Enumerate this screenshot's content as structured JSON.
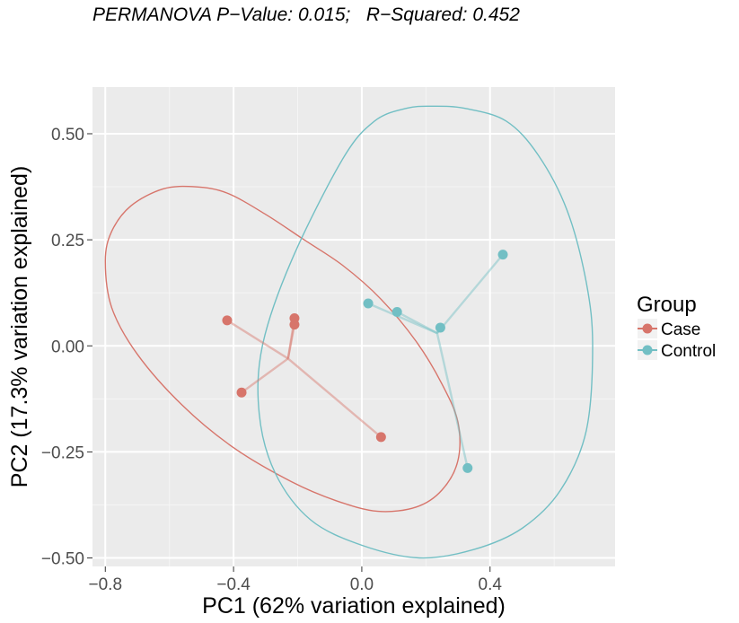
{
  "chart_data": {
    "type": "scatter",
    "title": "PERMANOVA P−Value: 0.015;   R−Squared: 0.452",
    "xlabel": "PC1 (62% variation explained)",
    "ylabel": "PC2 (17.3% variation explained)",
    "xlim": [
      -0.84,
      0.79
    ],
    "ylim": [
      -0.52,
      0.61
    ],
    "x_ticks": [
      -0.8,
      -0.4,
      0.0,
      0.4
    ],
    "x_tick_labels": [
      "−0.8",
      "−0.4",
      "0.0",
      "0.4"
    ],
    "y_ticks": [
      0.5,
      0.25,
      0.0,
      -0.25,
      -0.5
    ],
    "y_tick_labels": [
      "0.50",
      "0.25",
      "0.00",
      "−0.25",
      "−0.50"
    ],
    "grid": true,
    "legend": {
      "title": "Group",
      "position": "right"
    },
    "series": [
      {
        "name": "Case",
        "color": "#D7756B",
        "points": [
          [
            -0.42,
            0.06
          ],
          [
            -0.375,
            -0.11
          ],
          [
            -0.21,
            0.065
          ],
          [
            -0.21,
            0.05
          ],
          [
            0.06,
            -0.215
          ]
        ],
        "centroid": [
          -0.23,
          -0.03
        ],
        "ellipse_outline": [
          [
            -0.8,
            0.2
          ],
          [
            -0.78,
            0.27
          ],
          [
            -0.72,
            0.33
          ],
          [
            -0.62,
            0.37
          ],
          [
            -0.52,
            0.375
          ],
          [
            -0.42,
            0.36
          ],
          [
            -0.3,
            0.31
          ],
          [
            -0.18,
            0.25
          ],
          [
            -0.06,
            0.19
          ],
          [
            0.06,
            0.11
          ],
          [
            0.17,
            0.01
          ],
          [
            0.25,
            -0.09
          ],
          [
            0.3,
            -0.18
          ],
          [
            0.3,
            -0.27
          ],
          [
            0.25,
            -0.34
          ],
          [
            0.17,
            -0.38
          ],
          [
            0.05,
            -0.39
          ],
          [
            -0.08,
            -0.365
          ],
          [
            -0.22,
            -0.32
          ],
          [
            -0.4,
            -0.24
          ],
          [
            -0.56,
            -0.14
          ],
          [
            -0.7,
            -0.02
          ],
          [
            -0.78,
            0.09
          ],
          [
            -0.8,
            0.2
          ]
        ]
      },
      {
        "name": "Control",
        "color": "#72BFC4",
        "points": [
          [
            0.02,
            0.1
          ],
          [
            0.11,
            0.08
          ],
          [
            0.245,
            0.043
          ],
          [
            0.44,
            0.215
          ],
          [
            0.33,
            -0.288
          ]
        ],
        "centroid": [
          0.235,
          0.03
        ],
        "ellipse_outline": [
          [
            0.14,
            0.56
          ],
          [
            0.04,
            0.53
          ],
          [
            -0.06,
            0.44
          ],
          [
            -0.22,
            0.2
          ],
          [
            -0.31,
            0.0
          ],
          [
            -0.32,
            -0.16
          ],
          [
            -0.27,
            -0.3
          ],
          [
            -0.16,
            -0.41
          ],
          [
            0.0,
            -0.47
          ],
          [
            0.18,
            -0.5
          ],
          [
            0.35,
            -0.48
          ],
          [
            0.5,
            -0.43
          ],
          [
            0.62,
            -0.34
          ],
          [
            0.7,
            -0.2
          ],
          [
            0.72,
            0.0
          ],
          [
            0.7,
            0.15
          ],
          [
            0.64,
            0.32
          ],
          [
            0.55,
            0.45
          ],
          [
            0.45,
            0.53
          ],
          [
            0.32,
            0.56
          ],
          [
            0.22,
            0.565
          ],
          [
            0.14,
            0.56
          ]
        ]
      }
    ]
  }
}
